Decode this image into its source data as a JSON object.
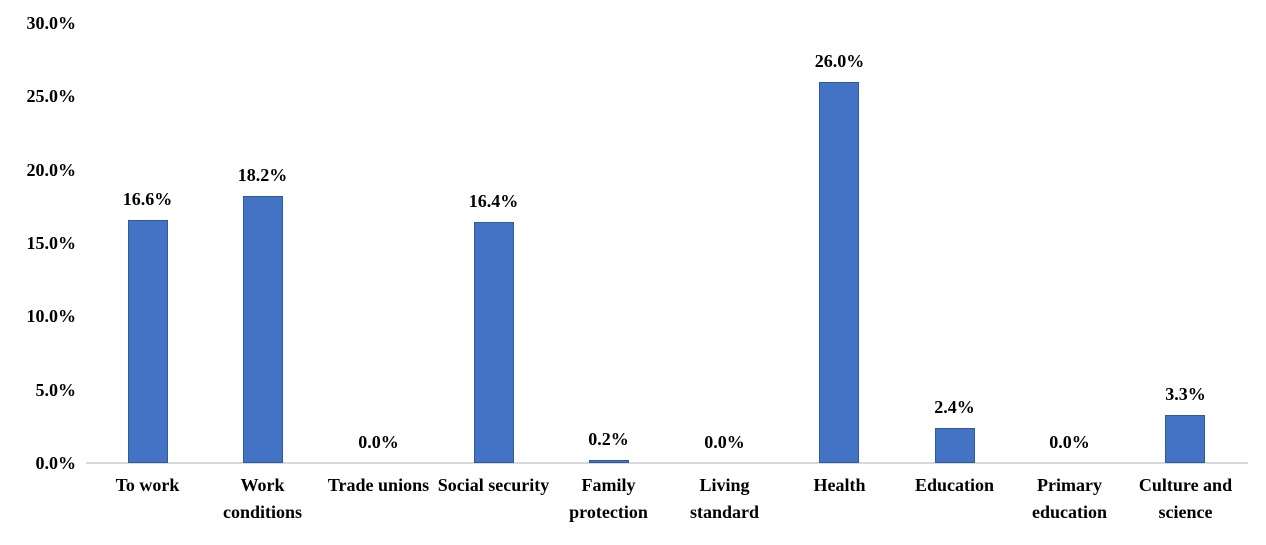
{
  "chart_data": {
    "type": "bar",
    "title": "",
    "xlabel": "",
    "ylabel": "",
    "categories": [
      "To work",
      "Work conditions",
      "Trade unions",
      "Social security",
      "Family protection",
      "Living standard",
      "Health",
      "Education",
      "Primary education",
      "Culture and science"
    ],
    "values": [
      16.6,
      18.2,
      0.0,
      16.4,
      0.2,
      0.0,
      26.0,
      2.4,
      0.0,
      3.3
    ],
    "value_labels": [
      "16.6%",
      "18.2%",
      "0.0%",
      "16.4%",
      "0.2%",
      "0.0%",
      "26.0%",
      "2.4%",
      "0.0%",
      "3.3%"
    ],
    "y_ticks": [
      {
        "value": 30,
        "label": "30.0%"
      },
      {
        "value": 25,
        "label": "25.0%"
      },
      {
        "value": 20,
        "label": "20.0%"
      },
      {
        "value": 15,
        "label": "15.0%"
      },
      {
        "value": 10,
        "label": "10.0%"
      },
      {
        "value": 5,
        "label": "5.0%"
      },
      {
        "value": 0,
        "label": "0.0%"
      }
    ],
    "ylim": [
      0,
      30
    ],
    "grid": false,
    "legend": false,
    "colors": {
      "bar_fill": "#4472c4",
      "bar_border": "#2e5b9f",
      "axis_line": "#d9d9d9",
      "text": "#000000"
    }
  }
}
